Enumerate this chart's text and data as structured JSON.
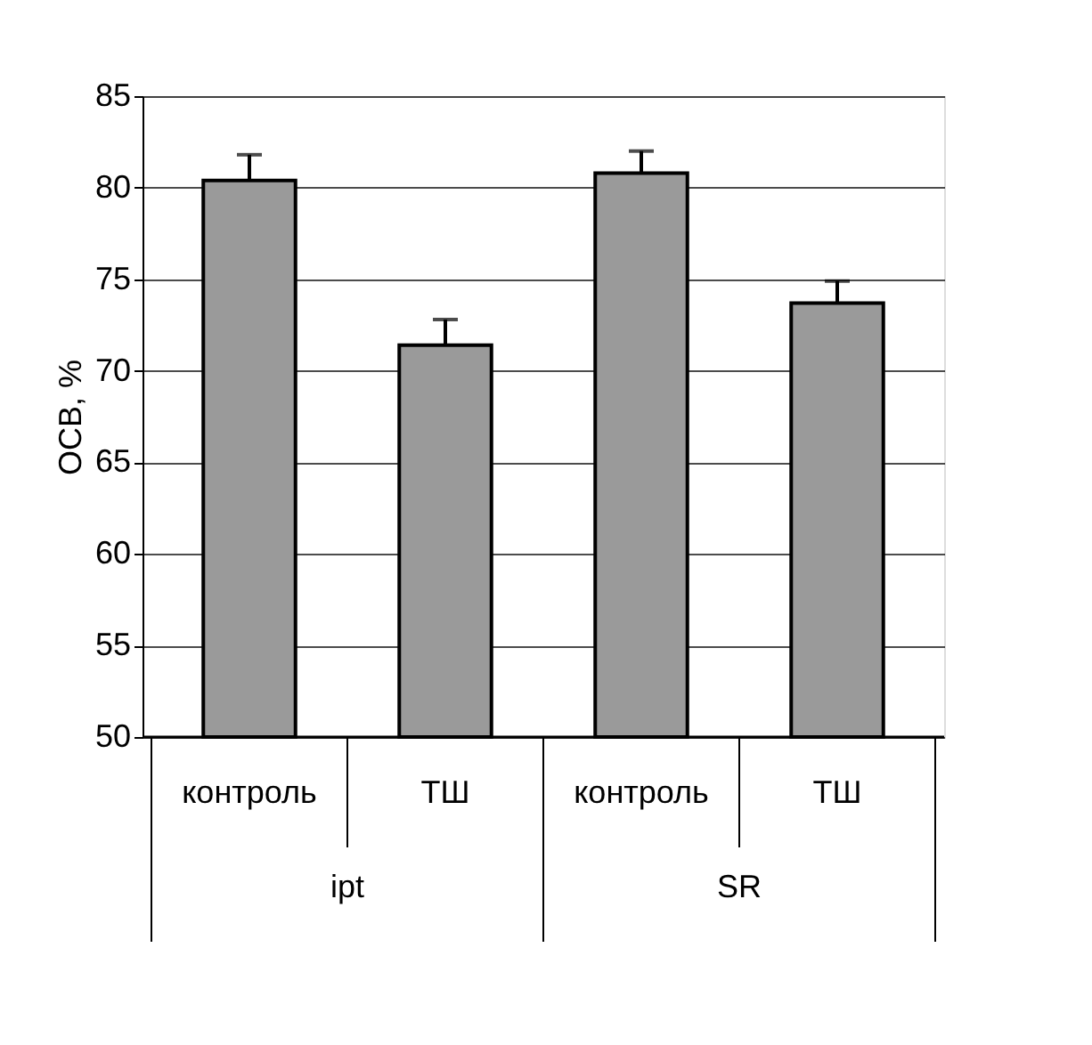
{
  "chart_data": {
    "type": "bar",
    "ylabel": "ОСВ, %",
    "categories": [
      "контроль",
      "ТШ",
      "контроль",
      "ТШ"
    ],
    "values": [
      80.4,
      71.4,
      80.8,
      73.7
    ],
    "errors": [
      1.4,
      1.4,
      1.2,
      1.2
    ],
    "color": "#9a9a9a",
    "annotations": [
      "ipt",
      "SR"
    ],
    "ylim": [
      50,
      85
    ],
    "yticks": [
      50,
      55,
      60,
      65,
      70,
      75,
      80,
      85
    ],
    "grid": "y"
  }
}
